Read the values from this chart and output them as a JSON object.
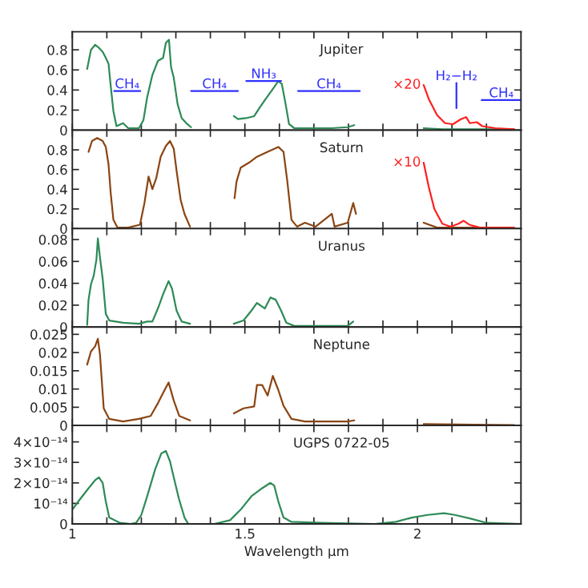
{
  "chart_data": [
    {
      "type": "line",
      "title": "Jupiter",
      "xlim": [
        1,
        2.3
      ],
      "ylim": [
        0,
        0.98
      ],
      "tick_labels": "y",
      "xticks": [
        1,
        {
          "value": 1.1,
          "label": null
        },
        {
          "value": 1.2,
          "label": null
        },
        {
          "value": 1.3,
          "label": null
        },
        {
          "value": 1.4,
          "label": null
        },
        1.5,
        {
          "value": 1.6,
          "label": null
        },
        {
          "value": 1.7,
          "label": null
        },
        {
          "value": 1.8,
          "label": null
        },
        {
          "value": 1.9,
          "label": null
        },
        2,
        {
          "value": 2.1,
          "label": null
        },
        {
          "value": 2.2,
          "label": null
        }
      ],
      "yticks": [
        0,
        0.2,
        0.4,
        0.6,
        0.8
      ],
      "series": [
        {
          "color": "#2e8b57",
          "x": [
            1.043,
            1.054,
            1.066,
            1.077,
            1.088,
            1.097,
            1.105,
            1.111,
            1.119,
            1.128,
            1.147,
            1.162,
            1.193,
            1.206,
            1.217,
            1.232,
            1.248,
            1.263,
            1.271,
            1.28,
            1.286,
            1.294,
            1.305,
            1.317,
            1.333,
            1.344,
            1.4,
            1.468,
            1.48,
            1.504,
            1.527,
            1.542,
            1.558,
            1.581,
            1.597,
            1.607,
            1.617,
            1.628,
            1.643,
            1.69,
            1.752,
            1.798,
            1.817,
            1.9,
            2.018,
            2.072,
            2.134,
            2.28
          ],
          "values": [
            0.61,
            0.8,
            0.85,
            0.82,
            0.78,
            0.72,
            0.66,
            0.45,
            0.19,
            0.04,
            0.07,
            0.02,
            0.02,
            0.1,
            0.33,
            0.55,
            0.69,
            0.72,
            0.87,
            0.9,
            0.63,
            0.52,
            0.26,
            0.12,
            0.06,
            0.03,
            null,
            0.14,
            0.11,
            0.12,
            0.14,
            0.22,
            0.3,
            0.41,
            0.49,
            0.46,
            0.28,
            0.06,
            0.02,
            0.02,
            0.02,
            0.03,
            0.05,
            null,
            0.02,
            0.01,
            0.01,
            0.01
          ]
        },
        {
          "name": "×20",
          "color": "#ff2020",
          "x": [
            2.018,
            2.033,
            2.057,
            2.08,
            2.103,
            2.126,
            2.141,
            2.152,
            2.172,
            2.188,
            2.226,
            2.28
          ],
          "values": [
            0.45,
            0.31,
            0.15,
            0.07,
            0.06,
            0.11,
            0.13,
            0.07,
            0.08,
            0.04,
            0.02,
            0.01
          ]
        },
        {
          "name": "CH₄",
          "color": "#3030ff",
          "x": [
            1.121,
            1.197
          ],
          "values": [
            0.39,
            0.39
          ]
        },
        {
          "name": "CH₄",
          "color": "#3030ff",
          "x": [
            1.344,
            1.48
          ],
          "values": [
            0.39,
            0.39
          ]
        },
        {
          "name": "NH₃",
          "color": "#3030ff",
          "x": [
            1.504,
            1.605
          ],
          "values": [
            0.49,
            0.49
          ]
        },
        {
          "name": "CH₄",
          "color": "#3030ff",
          "x": [
            1.654,
            1.833
          ],
          "values": [
            0.39,
            0.39
          ]
        },
        {
          "name": "H₂−H₂",
          "color": "#3030ff",
          "x": [
            2.113,
            2.113
          ],
          "values": [
            0.22,
            0.47
          ]
        },
        {
          "name": "CH₄",
          "color": "#3030ff",
          "x": [
            2.186,
            2.3
          ],
          "values": [
            0.3,
            0.3
          ]
        }
      ]
    },
    {
      "type": "line",
      "title": "Saturn",
      "xlim": [
        1,
        2.3
      ],
      "ylim": [
        0,
        1.0
      ],
      "tick_labels": "y",
      "xticks": [
        1,
        {
          "value": 1.1,
          "label": null
        },
        {
          "value": 1.2,
          "label": null
        },
        {
          "value": 1.3,
          "label": null
        },
        {
          "value": 1.4,
          "label": null
        },
        1.5,
        {
          "value": 1.6,
          "label": null
        },
        {
          "value": 1.7,
          "label": null
        },
        {
          "value": 1.8,
          "label": null
        },
        {
          "value": 1.9,
          "label": null
        },
        2,
        {
          "value": 2.1,
          "label": null
        },
        {
          "value": 2.2,
          "label": null
        }
      ],
      "yticks": [
        0,
        0.2,
        0.4,
        0.6,
        0.8
      ],
      "series": [
        {
          "color": "#8b4513",
          "x": [
            1.047,
            1.057,
            1.072,
            1.088,
            1.097,
            1.105,
            1.111,
            1.119,
            1.131,
            1.162,
            1.196,
            1.209,
            1.221,
            1.232,
            1.243,
            1.256,
            1.271,
            1.283,
            1.294,
            1.302,
            1.314,
            1.325,
            1.341,
            1.4,
            1.47,
            1.476,
            1.488,
            1.512,
            1.535,
            1.566,
            1.597,
            1.612,
            1.623,
            1.635,
            1.651,
            1.674,
            1.705,
            1.752,
            1.76,
            1.798,
            1.814,
            1.822,
            1.9,
            2.018,
            2.057,
            2.119,
            2.28
          ],
          "values": [
            0.78,
            0.89,
            0.92,
            0.89,
            0.83,
            0.65,
            0.37,
            0.09,
            0.01,
            0.01,
            0.04,
            0.26,
            0.53,
            0.4,
            0.51,
            0.73,
            0.84,
            0.89,
            0.81,
            0.59,
            0.29,
            0.15,
            0.02,
            null,
            0.31,
            0.48,
            0.62,
            0.67,
            0.73,
            0.78,
            0.83,
            0.78,
            0.48,
            0.09,
            0.02,
            0.06,
            0.02,
            0.15,
            0.02,
            0.06,
            0.26,
            0.15,
            null,
            0.06,
            0.01,
            0.01,
            0.01
          ]
        },
        {
          "name": "×10",
          "color": "#ff2020",
          "x": [
            2.018,
            2.033,
            2.049,
            2.072,
            2.096,
            2.119,
            2.134,
            2.15,
            2.181,
            2.28
          ],
          "values": [
            0.67,
            0.42,
            0.2,
            0.05,
            0.02,
            0.05,
            0.08,
            0.04,
            0.01,
            0.01
          ]
        }
      ]
    },
    {
      "type": "line",
      "title": "Uranus",
      "xlim": [
        1,
        2.3
      ],
      "ylim": [
        0,
        0.09
      ],
      "tick_labels": "y",
      "xticks": [
        1,
        {
          "value": 1.1,
          "label": null
        },
        {
          "value": 1.2,
          "label": null
        },
        {
          "value": 1.3,
          "label": null
        },
        {
          "value": 1.4,
          "label": null
        },
        1.5,
        {
          "value": 1.6,
          "label": null
        },
        {
          "value": 1.7,
          "label": null
        },
        {
          "value": 1.8,
          "label": null
        },
        {
          "value": 1.9,
          "label": null
        },
        2,
        {
          "value": 2.1,
          "label": null
        },
        {
          "value": 2.2,
          "label": null
        }
      ],
      "yticks": [
        0,
        0.02,
        0.04,
        0.06,
        0.08
      ],
      "series": [
        {
          "color": "#2e8b57",
          "x": [
            1.043,
            1.047,
            1.054,
            1.062,
            1.07,
            1.074,
            1.08,
            1.088,
            1.097,
            1.107,
            1.147,
            1.193,
            1.217,
            1.232,
            1.248,
            1.263,
            1.279,
            1.289,
            1.302,
            1.317,
            1.341,
            1.4,
            1.468,
            1.496,
            1.519,
            1.535,
            1.558,
            1.574,
            1.589,
            1.605,
            1.62,
            1.643,
            1.721,
            1.798,
            1.814
          ],
          "values": [
            0.002,
            0.025,
            0.039,
            0.047,
            0.062,
            0.081,
            0.064,
            0.044,
            0.012,
            0.006,
            0.004,
            0.003,
            0.005,
            0.005,
            0.017,
            0.03,
            0.042,
            0.035,
            0.015,
            0.005,
            0.003,
            null,
            0.003,
            0.006,
            0.015,
            0.022,
            0.017,
            0.027,
            0.025,
            0.015,
            0.004,
            0.001,
            0.001,
            0.001,
            0.005
          ]
        }
      ]
    },
    {
      "type": "line",
      "title": "Neptune",
      "xlim": [
        1,
        2.3
      ],
      "ylim": [
        0,
        0.027
      ],
      "tick_labels": "y",
      "xticks": [
        1,
        {
          "value": 1.1,
          "label": null
        },
        {
          "value": 1.2,
          "label": null
        },
        {
          "value": 1.3,
          "label": null
        },
        {
          "value": 1.4,
          "label": null
        },
        1.5,
        {
          "value": 1.6,
          "label": null
        },
        {
          "value": 1.7,
          "label": null
        },
        {
          "value": 1.8,
          "label": null
        },
        {
          "value": 1.9,
          "label": null
        },
        2,
        {
          "value": 2.1,
          "label": null
        },
        {
          "value": 2.2,
          "label": null
        }
      ],
      "yticks": [
        0,
        0.005,
        0.01,
        0.015,
        0.02,
        0.025
      ],
      "series": [
        {
          "color": "#8b4513",
          "x": [
            1.043,
            1.054,
            1.066,
            1.074,
            1.08,
            1.091,
            1.107,
            1.147,
            1.193,
            1.227,
            1.248,
            1.263,
            1.279,
            1.294,
            1.31,
            1.341,
            1.4,
            1.468,
            1.496,
            1.527,
            1.535,
            1.55,
            1.566,
            1.581,
            1.597,
            1.612,
            1.635,
            1.674,
            1.721,
            1.798,
            1.817,
            1.9,
            2.018,
            2.165,
            2.28
          ],
          "values": [
            0.0167,
            0.0203,
            0.0217,
            0.0238,
            0.0196,
            0.0047,
            0.0018,
            0.0011,
            0.0018,
            0.0026,
            0.0061,
            0.0089,
            0.0118,
            0.0068,
            0.0026,
            0.0014,
            null,
            0.0033,
            0.0047,
            0.0052,
            0.0111,
            0.0111,
            0.0082,
            0.0136,
            0.0097,
            0.0054,
            0.0018,
            0.0011,
            0.0011,
            0.0011,
            0.0014,
            null,
            0.0004,
            0.0002,
            0.0001
          ]
        }
      ]
    },
    {
      "type": "line",
      "title": "UGPS 0722-05",
      "xlabel": "Wavelength μm",
      "xlim": [
        1,
        2.3
      ],
      "ylim": [
        0,
        4.8e-14
      ],
      "xticks": [
        1,
        {
          "value": 1.1,
          "label": null
        },
        {
          "value": 1.2,
          "label": null
        },
        {
          "value": 1.3,
          "label": null
        },
        {
          "value": 1.4,
          "label": null
        },
        1.5,
        {
          "value": 1.6,
          "label": null
        },
        {
          "value": 1.7,
          "label": null
        },
        {
          "value": 1.8,
          "label": null
        },
        {
          "value": 1.9,
          "label": null
        },
        2,
        {
          "value": 2.1,
          "label": null
        },
        {
          "value": 2.2,
          "label": null
        }
      ],
      "yticks": [
        0,
        {
          "value": 1e-14,
          "label": "10⁻¹⁴"
        },
        {
          "value": 2e-14,
          "label": "2×10⁻¹⁴"
        },
        {
          "value": 3e-14,
          "label": "3×10⁻¹⁴"
        },
        {
          "value": 4e-14,
          "label": "4×10⁻¹⁴"
        }
      ],
      "series": [
        {
          "color": "#2e8b57",
          "x": [
            1.0,
            1.023,
            1.047,
            1.066,
            1.077,
            1.088,
            1.097,
            1.107,
            1.138,
            1.169,
            1.185,
            1.2,
            1.217,
            1.24,
            1.258,
            1.271,
            1.283,
            1.294,
            1.309,
            1.325,
            1.336,
            1.411,
            1.457,
            1.488,
            1.519,
            1.55,
            1.574,
            1.585,
            1.597,
            1.612,
            1.635,
            1.721,
            1.876,
            1.938,
            1.984,
            2.03,
            2.077,
            2.108,
            2.154,
            2.201,
            2.3
          ],
          "values": [
            7e-15,
            1.22e-14,
            1.74e-14,
            2.13e-14,
            2.27e-14,
            2e-14,
            1.09e-14,
            3.1e-15,
            5e-16,
            0,
            5e-16,
            4.4e-15,
            1.35e-14,
            2.66e-14,
            3.44e-14,
            3.56e-14,
            3.05e-14,
            2.27e-14,
            1.22e-14,
            3.1e-15,
            0,
            0,
            1.8e-15,
            7e-15,
            1.35e-14,
            1.74e-14,
            2e-14,
            1.87e-14,
            1.09e-14,
            3.1e-15,
            1e-15,
            5e-16,
            0,
            1e-15,
            3.1e-15,
            4.4e-15,
            5.2e-15,
            4.4e-15,
            2.6e-15,
            5e-16,
            0
          ]
        }
      ]
    }
  ]
}
